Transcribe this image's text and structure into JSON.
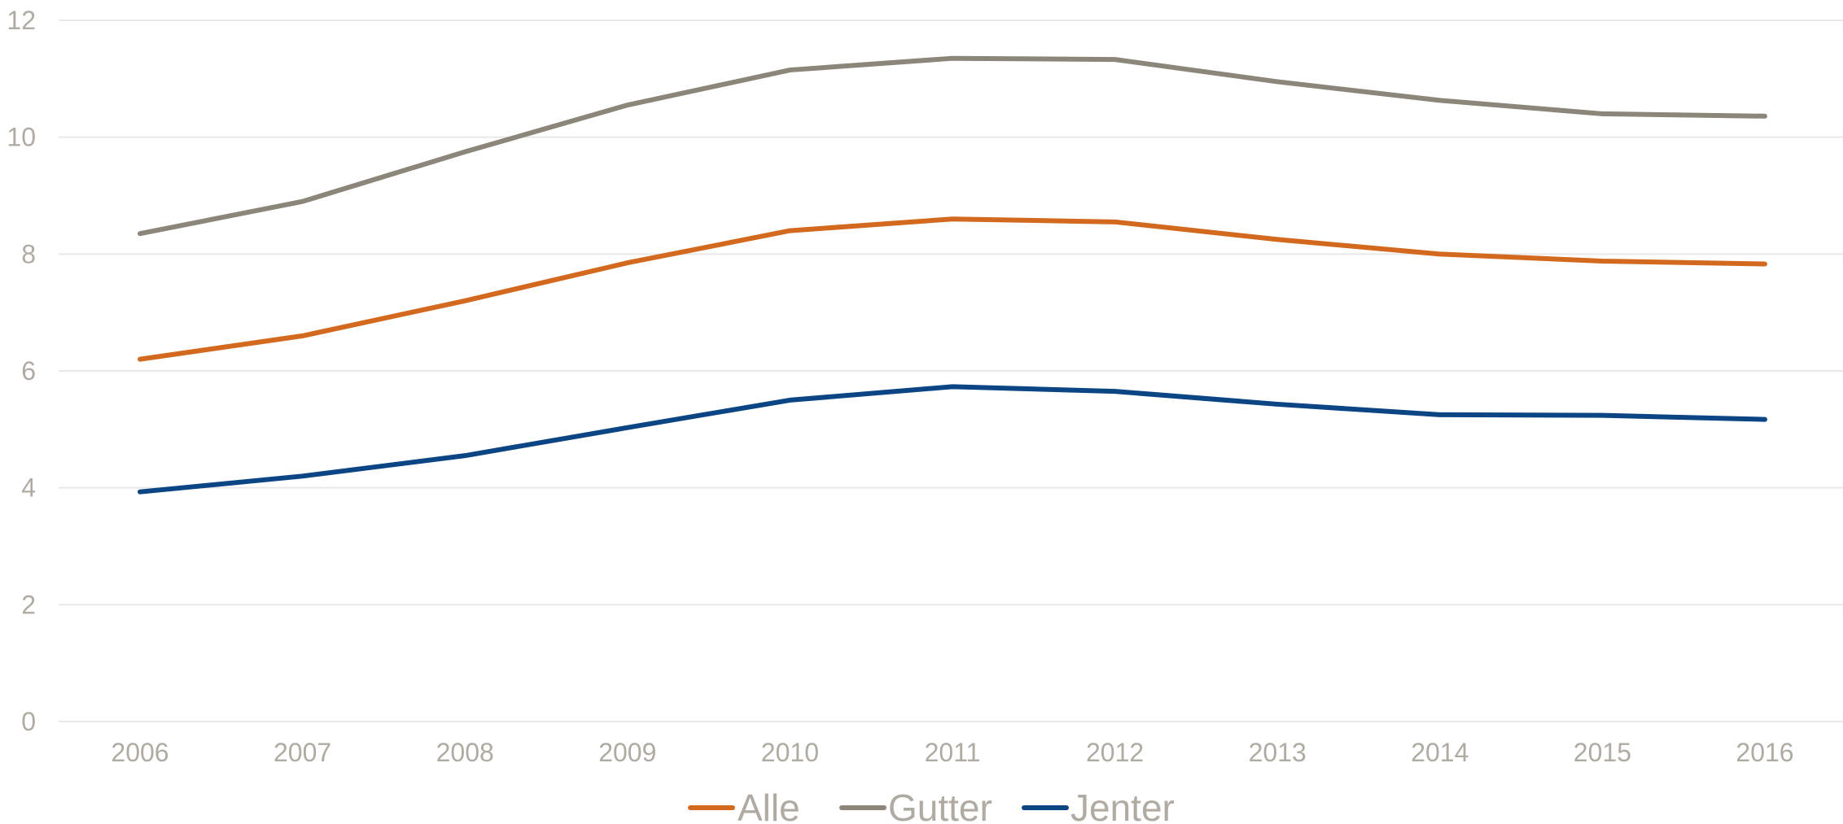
{
  "chart_data": {
    "type": "line",
    "title": "",
    "xlabel": "",
    "ylabel": "",
    "categories": [
      "2006",
      "2007",
      "2008",
      "2009",
      "2010",
      "2011",
      "2012",
      "2013",
      "2014",
      "2015",
      "2016"
    ],
    "ylim": [
      0,
      12
    ],
    "yticks": [
      "0",
      "2",
      "4",
      "6",
      "8",
      "10",
      "12"
    ],
    "grid": true,
    "legend_position": "bottom",
    "series": [
      {
        "name": "Alle",
        "color": "#d2691e",
        "values": [
          6.2,
          6.6,
          7.2,
          7.85,
          8.4,
          8.6,
          8.55,
          8.25,
          8.0,
          7.88,
          7.83
        ]
      },
      {
        "name": "Gutter",
        "color": "#8c8579",
        "values": [
          8.35,
          8.9,
          9.75,
          10.55,
          11.15,
          11.35,
          11.33,
          10.95,
          10.63,
          10.4,
          10.36
        ]
      },
      {
        "name": "Jenter",
        "color": "#0b4584",
        "values": [
          3.93,
          4.2,
          4.55,
          5.03,
          5.5,
          5.73,
          5.65,
          5.43,
          5.25,
          5.24,
          5.17
        ]
      }
    ]
  }
}
